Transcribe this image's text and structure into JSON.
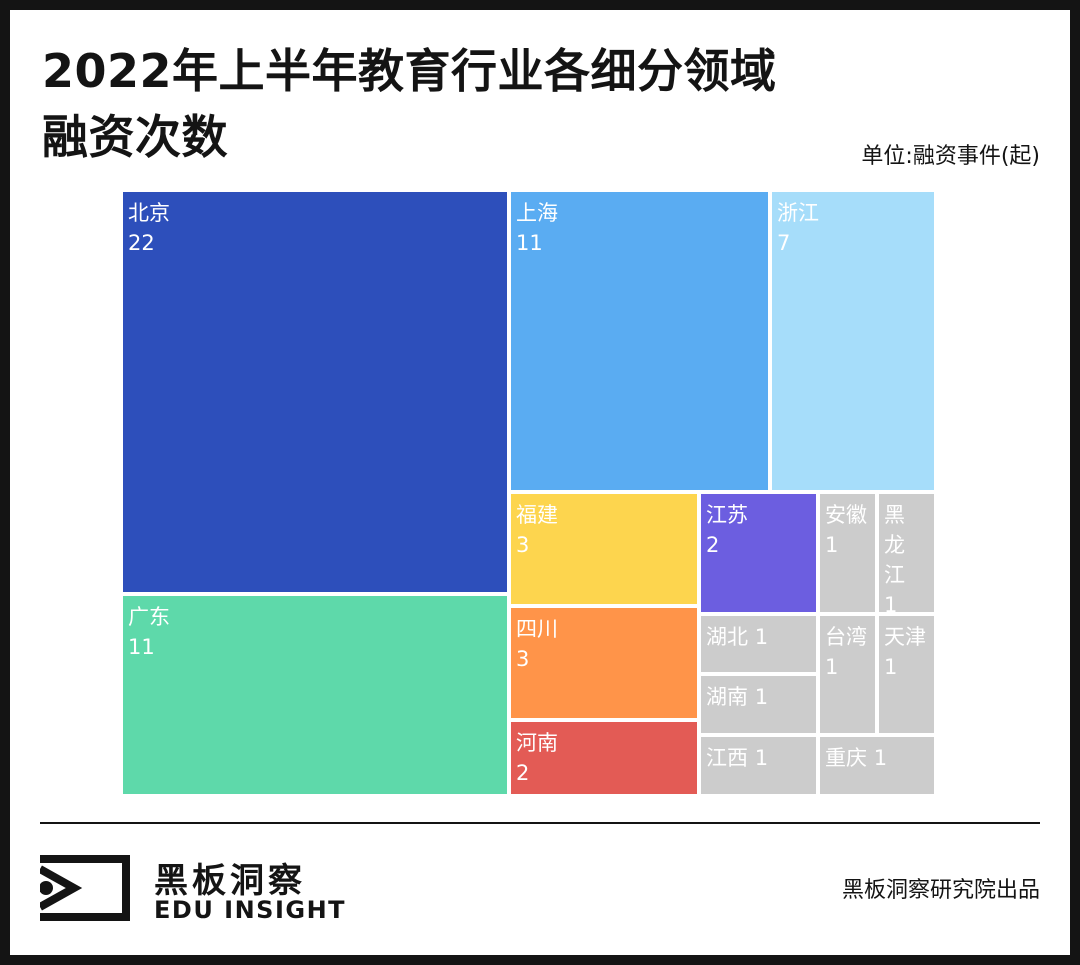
{
  "title_line1": "2022年上半年教育行业各细分领域",
  "title_line2": "融资次数",
  "unit_label": "单位:融资事件(起)",
  "chart_data": {
    "type": "treemap",
    "unit": "融资事件(起)",
    "items": [
      {
        "name": "北京",
        "value": 22,
        "color": "#2D4FBB"
      },
      {
        "name": "广东",
        "value": 11,
        "color": "#5ED9AA"
      },
      {
        "name": "上海",
        "value": 11,
        "color": "#5AACF2"
      },
      {
        "name": "浙江",
        "value": 7,
        "color": "#A6DDFA"
      },
      {
        "name": "福建",
        "value": 3,
        "color": "#FDD54E"
      },
      {
        "name": "四川",
        "value": 3,
        "color": "#FF9449"
      },
      {
        "name": "河南",
        "value": 2,
        "color": "#E35B55"
      },
      {
        "name": "江苏",
        "value": 2,
        "color": "#6C5EE0"
      },
      {
        "name": "安徽",
        "value": 1,
        "color": "#CCCCCC"
      },
      {
        "name": "黑龙江",
        "value": 1,
        "color": "#CCCCCC"
      },
      {
        "name": "湖北",
        "value": 1,
        "color": "#CCCCCC"
      },
      {
        "name": "湖南",
        "value": 1,
        "color": "#CCCCCC"
      },
      {
        "name": "台湾",
        "value": 1,
        "color": "#CCCCCC"
      },
      {
        "name": "天津",
        "value": 1,
        "color": "#CCCCCC"
      },
      {
        "name": "江西",
        "value": 1,
        "color": "#CCCCCC"
      },
      {
        "name": "重庆",
        "value": 1,
        "color": "#CCCCCC"
      }
    ]
  },
  "footer": {
    "brand_cn": "黑板洞察",
    "brand_en": "EDU INSIGHT",
    "credit": "黑板洞察研究院出品"
  }
}
